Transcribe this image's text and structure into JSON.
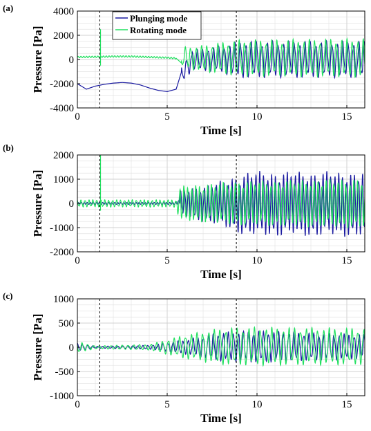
{
  "chart_data": [
    {
      "panel_label": "(a)",
      "type": "line",
      "xlabel": "Time [s]",
      "ylabel": "Pressure [Pa]",
      "xlim": [
        0,
        16
      ],
      "ylim": [
        -4000,
        4000
      ],
      "xticks": [
        0,
        5,
        10,
        15
      ],
      "yticks": [
        -4000,
        -2000,
        0,
        2000,
        4000
      ],
      "grid": true,
      "legend": {
        "placement": "top-left",
        "entries": [
          "Plunging mode",
          "Rotating mode"
        ]
      },
      "vlines": [
        1.25,
        8.85
      ],
      "series": [
        {
          "name": "Plunging mode",
          "color": "#1a1aa0",
          "x": [
            0,
            0.5,
            1,
            1.5,
            2,
            2.5,
            3,
            3.5,
            4,
            4.5,
            5,
            5.5,
            5.8,
            6.2,
            6.6,
            7,
            7.5,
            8,
            8.5,
            9,
            9.5,
            10,
            10.5,
            11,
            11.5,
            12,
            12.5,
            13,
            13.5,
            14,
            14.5,
            15,
            15.5,
            16
          ],
          "y": [
            -2000,
            -2450,
            -2200,
            -2050,
            -1950,
            -1900,
            -1950,
            -2100,
            -2350,
            -2550,
            -2650,
            -2450,
            -1000,
            -300,
            -600,
            200,
            -500,
            900,
            -900,
            1200,
            -1300,
            1500,
            -1400,
            1600,
            -1300,
            1700,
            -1400,
            1600,
            -1300,
            1700,
            -1300,
            1600,
            -1200,
            1200
          ],
          "oscillation": {
            "start": 5.8,
            "period": 0.3,
            "amplitude": [
              [
                5.8,
                700
              ],
              [
                8,
                1100
              ],
              [
                9,
                1500
              ],
              [
                16,
                1500
              ]
            ]
          }
        },
        {
          "name": "Rotating mode",
          "color": "#22e060",
          "x": [
            0,
            1,
            2,
            3,
            4,
            5,
            5.5,
            5.8,
            6.2,
            7,
            8,
            9,
            10,
            11,
            12,
            13,
            14,
            15,
            16
          ],
          "y": [
            200,
            220,
            250,
            250,
            200,
            150,
            100,
            -300,
            1300,
            1000,
            1500,
            1500,
            1600,
            1700,
            1700,
            1600,
            1700,
            1700,
            1500
          ],
          "oscillation": {
            "start": 5.8,
            "period": 0.3,
            "amplitude": [
              [
                5.8,
                800
              ],
              [
                7,
                1100
              ],
              [
                9,
                1500
              ],
              [
                16,
                1600
              ]
            ]
          }
        }
      ]
    },
    {
      "panel_label": "(b)",
      "type": "line",
      "xlabel": "Time [s]",
      "ylabel": "Pressure [Pa]",
      "xlim": [
        0,
        16
      ],
      "ylim": [
        -2000,
        2000
      ],
      "xticks": [
        0,
        5,
        10,
        15
      ],
      "yticks": [
        -2000,
        -1000,
        0,
        1000,
        2000
      ],
      "grid": true,
      "vlines": [
        1.25,
        8.85
      ],
      "series": [
        {
          "name": "Plunging mode",
          "color": "#1a1aa0",
          "x": [
            0,
            2,
            4,
            5.5,
            6,
            7,
            8,
            9,
            10,
            11,
            12,
            13,
            14,
            15,
            16
          ],
          "y": [
            0,
            50,
            0,
            0,
            400,
            -700,
            600,
            -1300,
            900,
            -1400,
            1000,
            -1500,
            900,
            -1500,
            400
          ],
          "oscillation": {
            "start": 5.7,
            "period": 0.22,
            "amplitude": [
              [
                5.7,
                500
              ],
              [
                8,
                900
              ],
              [
                9.5,
                1300
              ],
              [
                16,
                1300
              ]
            ]
          }
        },
        {
          "name": "Rotating mode",
          "color": "#22e060",
          "x": [
            0,
            1,
            2,
            3,
            4,
            5,
            5.7,
            6,
            7,
            8,
            9,
            10,
            11,
            12,
            13,
            14,
            15,
            16
          ],
          "y": [
            0,
            100,
            -100,
            100,
            -100,
            80,
            -800,
            600,
            -600,
            800,
            -700,
            900,
            -900,
            1000,
            -1000,
            1100,
            -1000,
            900
          ],
          "oscillation": {
            "start": 0,
            "period": 0.22,
            "amplitude": [
              [
                0,
                150
              ],
              [
                5.5,
                150
              ],
              [
                5.7,
                700
              ],
              [
                9,
                900
              ],
              [
                16,
                1000
              ]
            ]
          }
        }
      ]
    },
    {
      "panel_label": "(c)",
      "type": "line",
      "xlabel": "Time [s]",
      "ylabel": "Pressure [Pa]",
      "xlim": [
        0,
        16
      ],
      "ylim": [
        -1000,
        1000
      ],
      "xticks": [
        0,
        5,
        10,
        15
      ],
      "yticks": [
        -1000,
        -500,
        0,
        500,
        1000
      ],
      "grid": true,
      "vlines": [
        1.25,
        8.85
      ],
      "series": [
        {
          "name": "Plunging mode",
          "color": "#1a1aa0",
          "x": [
            0,
            1,
            2,
            3,
            4,
            5,
            6,
            7,
            8,
            9,
            10,
            11,
            12,
            13,
            14,
            15,
            16
          ],
          "y": [
            0,
            20,
            10,
            20,
            30,
            50,
            150,
            200,
            250,
            300,
            300,
            300,
            280,
            280,
            260,
            250,
            220
          ],
          "oscillation": {
            "start": 0,
            "period": 0.28,
            "amplitude": [
              [
                0,
                80
              ],
              [
                1,
                20
              ],
              [
                4,
                40
              ],
              [
                6,
                150
              ],
              [
                8,
                300
              ],
              [
                10,
                330
              ],
              [
                16,
                250
              ]
            ]
          }
        },
        {
          "name": "Rotating mode",
          "color": "#22e060",
          "x": [
            0,
            1,
            2,
            3,
            4,
            5,
            6,
            7,
            8,
            9,
            10,
            11,
            12,
            13,
            14,
            15,
            16
          ],
          "y": [
            0,
            20,
            10,
            20,
            40,
            80,
            200,
            300,
            380,
            400,
            380,
            400,
            380,
            400,
            400,
            380,
            300
          ],
          "oscillation": {
            "start": 0,
            "period": 0.32,
            "amplitude": [
              [
                0,
                120
              ],
              [
                1,
                30
              ],
              [
                4,
                60
              ],
              [
                6,
                250
              ],
              [
                8,
                380
              ],
              [
                10,
                400
              ],
              [
                16,
                380
              ]
            ]
          }
        }
      ]
    }
  ]
}
